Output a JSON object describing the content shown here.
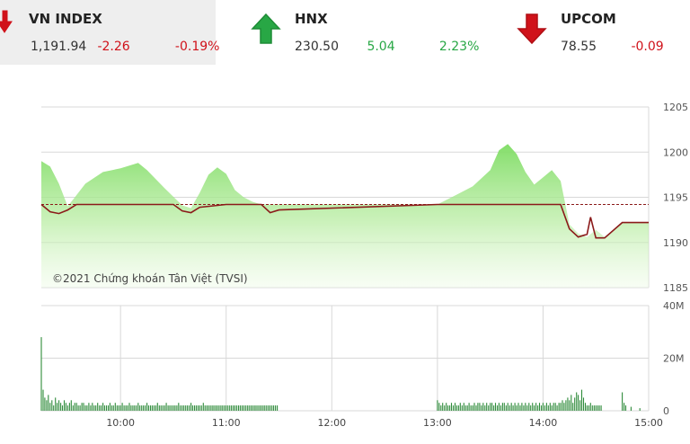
{
  "tickers": [
    {
      "name": "VN INDEX",
      "value": "1,191.94",
      "change": "-2.26",
      "pct": "-0.19%",
      "direction": "down"
    },
    {
      "name": "HNX",
      "value": "230.50",
      "change": "5.04",
      "pct": "2.23%",
      "direction": "up"
    },
    {
      "name": "UPCOM",
      "value": "78.55",
      "change": "-0.09",
      "pct": "",
      "direction": "down"
    }
  ],
  "colors": {
    "up": "#28a745",
    "down": "#d0121a",
    "price_line": "#8b1a1a",
    "area": "#8fe07a",
    "volume_bar": "#2e8b3a",
    "grid": "#d8d8d8"
  },
  "chart_data": [
    {
      "type": "area",
      "watermark": "©2021 Chứng khoán Tân Việt (TVSI)",
      "y_ticks": [
        "1205",
        "1200",
        "1195",
        "1190",
        "1185"
      ],
      "ylim": [
        1185,
        1205
      ],
      "reference_value": 1194.2,
      "session_high_series": {
        "x": [
          "09:15",
          "09:20",
          "09:25",
          "09:30",
          "09:40",
          "09:50",
          "10:00",
          "10:10",
          "10:15",
          "10:25",
          "10:35",
          "10:40",
          "10:45",
          "10:50",
          "10:55",
          "11:00",
          "11:05",
          "11:10",
          "11:15",
          "11:20",
          "11:25",
          "11:30",
          "13:00",
          "13:10",
          "13:20",
          "13:30",
          "13:35",
          "13:40",
          "13:45",
          "13:50",
          "13:55",
          "14:00",
          "14:05",
          "14:10",
          "14:15",
          "14:20",
          "14:25",
          "14:30",
          "14:35",
          "14:45",
          "14:50",
          "15:00"
        ],
        "y": [
          1199.0,
          1198.4,
          1196.5,
          1194.0,
          1196.5,
          1197.8,
          1198.2,
          1198.8,
          1198.0,
          1196.0,
          1194.1,
          1193.8,
          1195.5,
          1197.5,
          1198.3,
          1197.6,
          1195.8,
          1195.0,
          1194.5,
          1194.2,
          1194.2,
          1194.2,
          1194.2,
          1195.2,
          1196.2,
          1198.0,
          1200.2,
          1200.9,
          1199.8,
          1197.8,
          1196.4,
          1197.2,
          1198.0,
          1196.8,
          1192.0,
          1191.0,
          1190.6,
          1191.4,
          1190.6,
          1192.2,
          1192.2,
          1192.2
        ]
      },
      "price_series": {
        "x": [
          "09:15",
          "09:20",
          "09:25",
          "09:30",
          "09:35",
          "09:40",
          "09:50",
          "10:00",
          "10:30",
          "10:35",
          "10:40",
          "10:45",
          "11:00",
          "11:20",
          "11:25",
          "11:30",
          "13:00",
          "13:05",
          "13:10",
          "13:20",
          "13:30",
          "14:00",
          "14:10",
          "14:15",
          "14:20",
          "14:25",
          "14:27",
          "14:30",
          "14:35",
          "14:45",
          "14:50",
          "15:00"
        ],
        "y": [
          1194.2,
          1193.4,
          1193.2,
          1193.6,
          1194.2,
          1194.2,
          1194.2,
          1194.2,
          1194.2,
          1193.5,
          1193.3,
          1193.9,
          1194.2,
          1194.2,
          1193.3,
          1193.6,
          1194.2,
          1194.2,
          1194.2,
          1194.2,
          1194.2,
          1194.2,
          1194.2,
          1191.5,
          1190.6,
          1190.9,
          1192.8,
          1190.5,
          1190.5,
          1192.2,
          1192.2,
          1192.2
        ]
      }
    },
    {
      "type": "bar",
      "y_ticks": [
        "40M",
        "20M",
        "0"
      ],
      "ylim": [
        0,
        40
      ],
      "x_ticks": [
        "10:00",
        "11:00",
        "12:00",
        "13:00",
        "14:00",
        "15:00"
      ],
      "xlim": [
        "09:15",
        "15:00"
      ],
      "volume_morning": {
        "start": "09:15",
        "step_minutes": 1,
        "values": [
          28,
          8,
          5,
          4,
          6,
          3,
          4,
          2,
          5,
          3,
          4,
          3,
          2,
          4,
          3,
          2,
          3,
          4,
          2,
          3,
          3,
          2,
          2,
          3,
          3,
          2,
          2,
          3,
          2,
          3,
          2,
          2,
          3,
          2,
          2,
          3,
          2,
          2,
          2,
          3,
          2,
          2,
          3,
          2,
          2,
          2,
          3,
          2,
          2,
          2,
          3,
          2,
          2,
          2,
          2,
          3,
          2,
          2,
          2,
          2,
          3,
          2,
          2,
          2,
          2,
          2,
          3,
          2,
          2,
          2,
          2,
          3,
          2,
          2,
          2,
          2,
          2,
          2,
          3,
          2,
          2,
          2,
          2,
          2,
          2,
          3,
          2,
          2,
          2,
          2,
          2,
          2,
          3,
          2,
          2,
          2,
          2,
          2,
          2,
          2,
          2,
          2,
          2,
          2,
          2,
          2,
          2,
          2,
          2,
          2,
          2,
          2,
          2,
          2,
          2,
          2,
          2,
          2,
          2,
          2,
          2,
          2,
          2,
          2,
          2,
          2,
          2,
          2,
          2,
          2,
          2,
          2,
          2,
          2,
          2
        ]
      },
      "volume_afternoon": {
        "start": "13:00",
        "step_minutes": 1,
        "values": [
          4,
          3,
          2,
          3,
          2,
          3,
          2,
          2,
          3,
          2,
          3,
          2,
          2,
          3,
          2,
          3,
          2,
          2,
          3,
          2,
          2,
          3,
          2,
          3,
          3,
          2,
          3,
          2,
          3,
          2,
          3,
          3,
          2,
          3,
          2,
          3,
          2,
          3,
          3,
          2,
          3,
          2,
          3,
          2,
          3,
          2,
          3,
          2,
          3,
          2,
          3,
          2,
          3,
          2,
          3,
          2,
          3,
          2,
          3,
          2,
          3,
          2,
          3,
          2,
          3,
          2,
          3,
          3,
          2,
          3,
          3,
          4,
          3,
          4,
          5,
          4,
          6,
          3,
          5,
          7,
          6,
          4,
          8,
          5,
          3,
          2,
          2,
          3,
          2,
          2,
          2,
          2,
          2,
          2
        ]
      },
      "volume_close": {
        "x": [
          "14:45",
          "14:46",
          "14:47",
          "14:50",
          "14:55"
        ],
        "y": [
          7,
          3,
          2,
          1.5,
          1
        ]
      }
    }
  ]
}
